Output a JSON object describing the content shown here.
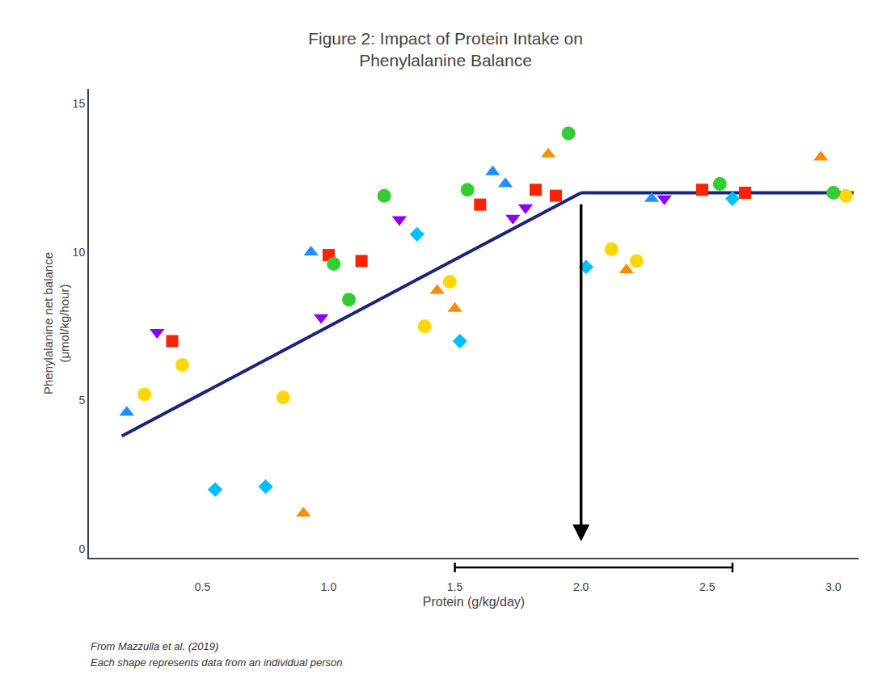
{
  "chart_data": {
    "type": "scatter",
    "title": "Figure 2: Impact of Protein Intake on\nPhenylalanine Balance",
    "xlabel": "Protein (g/kg/day)",
    "ylabel": "Phenylalanine net balance\n(μmol/kg/hour)",
    "xlim": [
      0.05,
      3.1
    ],
    "ylim": [
      -0.3,
      15.5
    ],
    "xticks": [
      0.5,
      {
        "value": 1,
        "label": "1.0"
      },
      1.5,
      {
        "value": 2,
        "label": "2.0"
      },
      2.5,
      {
        "value": 3,
        "label": "3.0"
      }
    ],
    "yticks": [
      0,
      5,
      10,
      15
    ],
    "grid": false,
    "footnotes": [
      "From Mazzulla et al. (2019)",
      "Each shape represents data from an individual person"
    ],
    "series": [
      {
        "type": "scatter",
        "color": "#1E90FF",
        "marker": "triangle-up",
        "x": [
          0.2,
          0.93,
          1.65,
          1.7,
          2.28
        ],
        "values": [
          4.6,
          10.0,
          12.7,
          12.3,
          11.8
        ]
      },
      {
        "type": "scatter",
        "color": "#FFD700",
        "marker": "circle",
        "x": [
          0.27,
          0.42,
          0.82,
          1.38,
          1.48,
          2.12,
          2.22,
          3.05
        ],
        "values": [
          5.2,
          6.2,
          5.1,
          7.5,
          9.0,
          10.1,
          9.7,
          11.9
        ]
      },
      {
        "type": "scatter",
        "color": "#8B00FF",
        "marker": "triangle-down",
        "x": [
          0.32,
          0.97,
          1.28,
          1.73,
          1.78,
          2.33
        ],
        "values": [
          7.3,
          7.8,
          11.1,
          11.15,
          11.5,
          11.8
        ]
      },
      {
        "type": "scatter",
        "color": "#FF2200",
        "marker": "square",
        "x": [
          0.38,
          1.0,
          1.13,
          1.6,
          1.82,
          1.9,
          2.48,
          2.65
        ],
        "values": [
          7.0,
          9.9,
          9.7,
          11.6,
          12.1,
          11.9,
          12.1,
          12.0
        ]
      },
      {
        "type": "scatter",
        "color": "#00BFFF",
        "marker": "diamond",
        "x": [
          0.55,
          0.75,
          1.35,
          1.52,
          2.02,
          2.6
        ],
        "values": [
          2.0,
          2.1,
          10.6,
          7.0,
          9.5,
          11.8
        ]
      },
      {
        "type": "scatter",
        "color": "#FF8C00",
        "marker": "triangle-up",
        "x": [
          0.9,
          1.43,
          1.5,
          1.87,
          2.18,
          2.95
        ],
        "values": [
          1.2,
          8.7,
          8.1,
          13.3,
          9.4,
          13.2
        ]
      },
      {
        "type": "scatter",
        "color": "#32CD32",
        "marker": "circle",
        "x": [
          1.02,
          1.08,
          1.22,
          1.55,
          1.95,
          2.55,
          3.0
        ],
        "values": [
          9.6,
          8.4,
          11.9,
          12.1,
          14.0,
          12.3,
          12.0
        ]
      },
      {
        "type": "line",
        "color": "#1a237e",
        "line_style": "solid",
        "x": [
          0.18,
          2.0
        ],
        "values": [
          3.8,
          12.0
        ]
      },
      {
        "type": "line",
        "color": "#1a237e",
        "line_style": "solid",
        "x": [
          2.0,
          3.08
        ],
        "values": [
          12.0,
          12.0
        ]
      }
    ],
    "annotations": [
      {
        "shape": "arrow",
        "color": "#000000",
        "x": 2.0,
        "y": [
          11.65,
          0.25
        ]
      },
      {
        "shape": "bracket",
        "color": "#000000",
        "x": [
          1.5,
          2.6
        ]
      }
    ]
  }
}
